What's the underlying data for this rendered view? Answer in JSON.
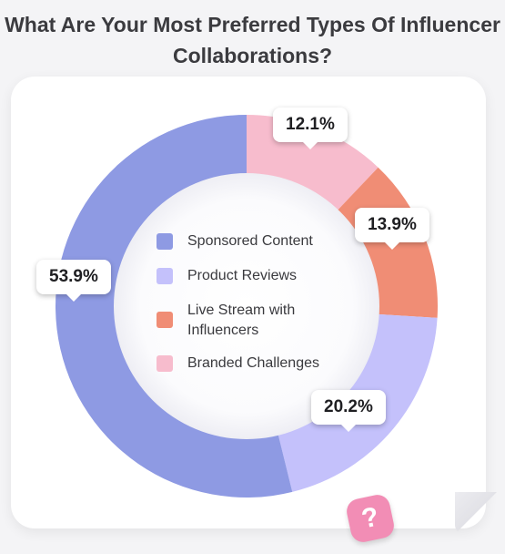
{
  "title": "What Are Your Most Preferred Types Of Influencer Collaborations?",
  "chart_data": {
    "type": "pie",
    "title": "What Are Your Most Preferred Types Of Influencer Collaborations?",
    "categories": [
      "Sponsored Content",
      "Product Reviews",
      "Live Stream with Influencers",
      "Branded Challenges"
    ],
    "values": [
      53.9,
      20.2,
      13.9,
      12.1
    ],
    "labels": [
      "53.9%",
      "20.2%",
      "13.9%",
      "12.1%"
    ],
    "colors": [
      "#8e9ae3",
      "#c4c1fb",
      "#f08d75",
      "#f7bccd"
    ],
    "legend": "center"
  },
  "legend": [
    {
      "label": "Sponsored Content",
      "color": "#8e9ae3"
    },
    {
      "label": "Product Reviews",
      "color": "#c4c1fb"
    },
    {
      "label": "Live Stream with Influencers",
      "color": "#f08d75"
    },
    {
      "label": "Branded Challenges",
      "color": "#f7bccd"
    }
  ],
  "badge": {
    "icon": "question-mark-icon",
    "glyph": "?"
  }
}
